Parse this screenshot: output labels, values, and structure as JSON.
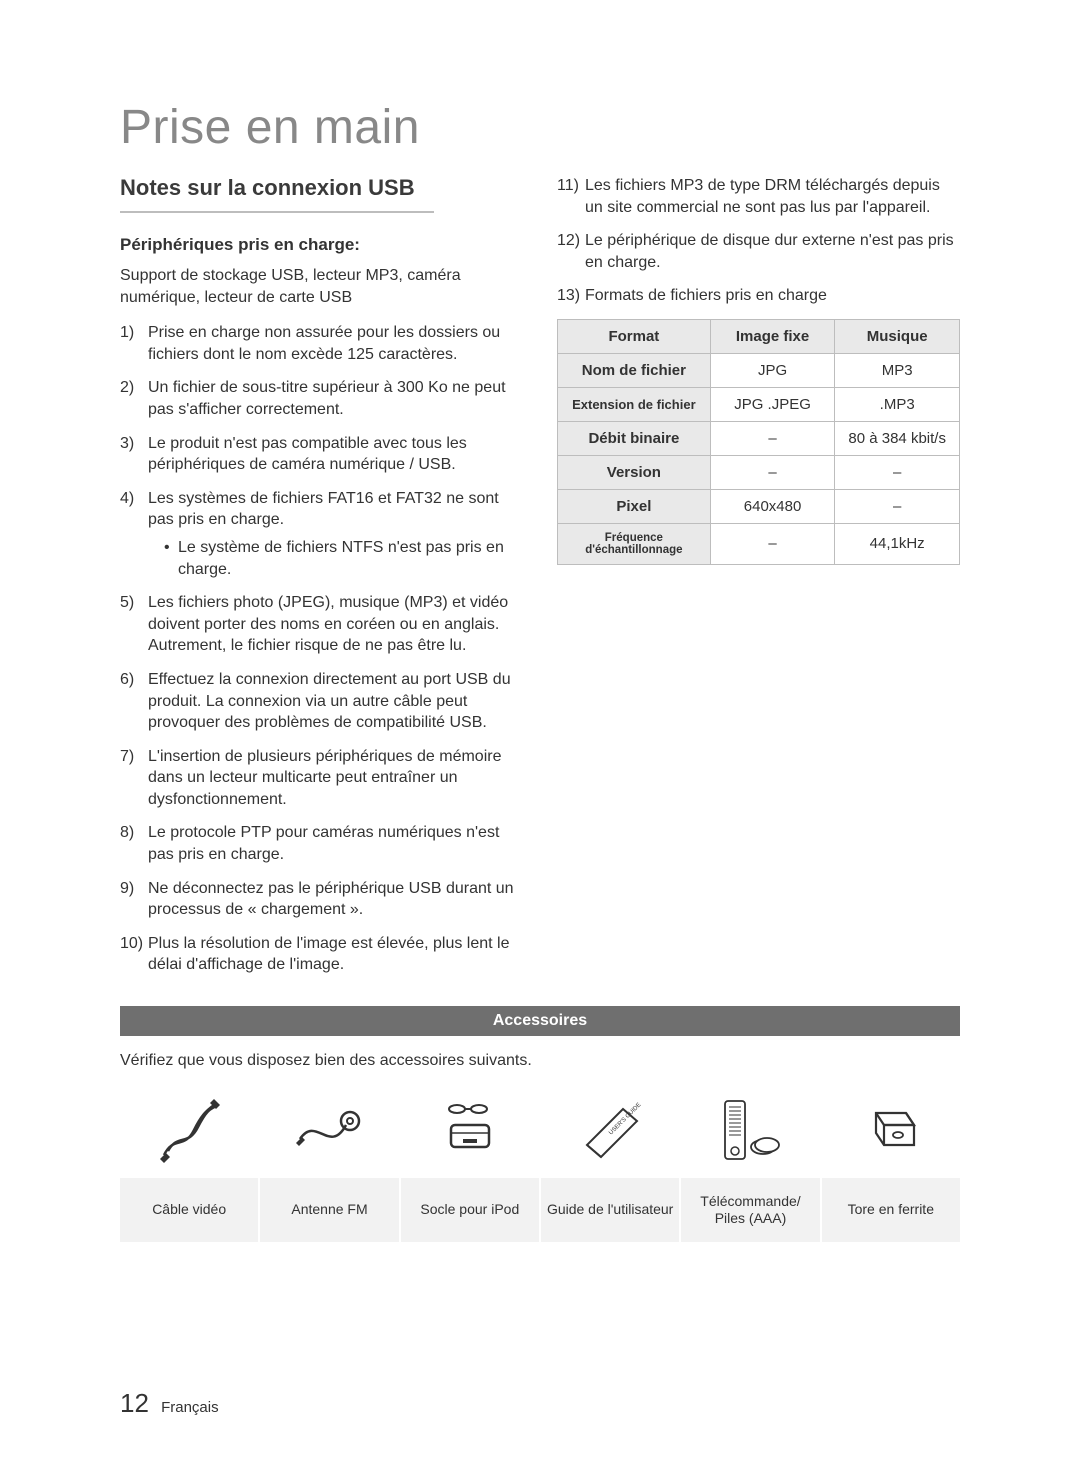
{
  "page": {
    "title": "Prise en main",
    "section_heading": "Notes sur la connexion USB",
    "subheading": "Périphériques pris en charge:",
    "intro": "Support de stockage USB, lecteur MP3, caméra numérique, lecteur de carte USB",
    "page_number": "12",
    "page_lang": "Français"
  },
  "colors": {
    "text": "#333333",
    "title_gray": "#888888",
    "rule": "#bdbdbd",
    "table_header_bg": "#e9e9e9",
    "acc_label_bg": "#f2f2f2",
    "acc_bar_bg": "#6f6f6f",
    "acc_bar_fg": "#ffffff"
  },
  "list_left": [
    {
      "n": "1)",
      "text": "Prise en charge non assurée pour les dossiers ou fichiers dont le nom excède 125 caractères."
    },
    {
      "n": "2)",
      "text": "Un fichier de sous-titre supérieur à 300 Ko ne peut pas s'afficher correctement."
    },
    {
      "n": "3)",
      "text": "Le produit n'est pas compatible avec tous les périphériques de caméra numérique / USB."
    },
    {
      "n": "4)",
      "text": "Les systèmes de fichiers FAT16 et FAT32 ne sont pas pris en charge.",
      "sub": [
        "Le système de fichiers NTFS n'est pas pris en charge."
      ]
    },
    {
      "n": "5)",
      "text": "Les fichiers photo (JPEG), musique (MP3) et vidéo doivent porter des noms en coréen ou en anglais. Autrement, le fichier risque de ne pas être lu."
    },
    {
      "n": "6)",
      "text": "Effectuez la connexion directement au port USB du produit. La connexion via un autre câble peut provoquer des problèmes de compatibilité USB."
    },
    {
      "n": "7)",
      "text": "L'insertion de plusieurs périphériques de mémoire dans un lecteur multicarte peut entraîner un dysfonctionnement."
    },
    {
      "n": "8)",
      "text": "Le protocole PTP pour caméras numériques n'est pas pris en charge."
    },
    {
      "n": "9)",
      "text": "Ne déconnectez pas le périphérique USB durant un processus de « chargement »."
    },
    {
      "n": "10)",
      "text": "Plus la résolution de l'image est élevée, plus lent le délai d'affichage de l'image."
    }
  ],
  "list_right": [
    {
      "n": "11)",
      "text": "Les fichiers MP3 de type DRM téléchargés depuis un site commercial ne sont pas lus par l'appareil."
    },
    {
      "n": "12)",
      "text": "Le périphérique de disque dur externe n'est pas pris en charge."
    },
    {
      "n": "13)",
      "text": "Formats de fichiers pris en charge"
    }
  ],
  "format_table": {
    "headers": [
      "Format",
      "Image fixe",
      "Musique"
    ],
    "rows": [
      {
        "head": "Nom de fichier",
        "c1": "JPG",
        "c2": "MP3",
        "size": "normal"
      },
      {
        "head": "Extension de fichier",
        "c1": "JPG .JPEG",
        "c2": ".MP3",
        "size": "small"
      },
      {
        "head": "Débit binaire",
        "c1": "–",
        "c2": "80 à 384 kbit/s",
        "size": "normal"
      },
      {
        "head": "Version",
        "c1": "–",
        "c2": "–",
        "size": "normal"
      },
      {
        "head": "Pixel",
        "c1": "640x480",
        "c2": "–",
        "size": "normal"
      },
      {
        "head": "Fréquence d'échantillonnage",
        "c1": "–",
        "c2": "44,1kHz",
        "size": "xsmall"
      }
    ],
    "col_widths_pct": [
      38,
      31,
      31
    ]
  },
  "accessories": {
    "title": "Accessoires",
    "intro": "Vérifiez que vous disposez bien des accessoires suivants.",
    "items": [
      {
        "label": "Câble vidéo",
        "icon": "cable-video-icon"
      },
      {
        "label": "Antenne FM",
        "icon": "antenna-fm-icon"
      },
      {
        "label": "Socle pour iPod",
        "icon": "ipod-dock-icon"
      },
      {
        "label": "Guide de l'utilisateur",
        "icon": "user-guide-icon"
      },
      {
        "label": "Télécommande/\nPiles (AAA)",
        "icon": "remote-batteries-icon"
      },
      {
        "label": "Tore en ferrite",
        "icon": "ferrite-core-icon"
      }
    ]
  }
}
